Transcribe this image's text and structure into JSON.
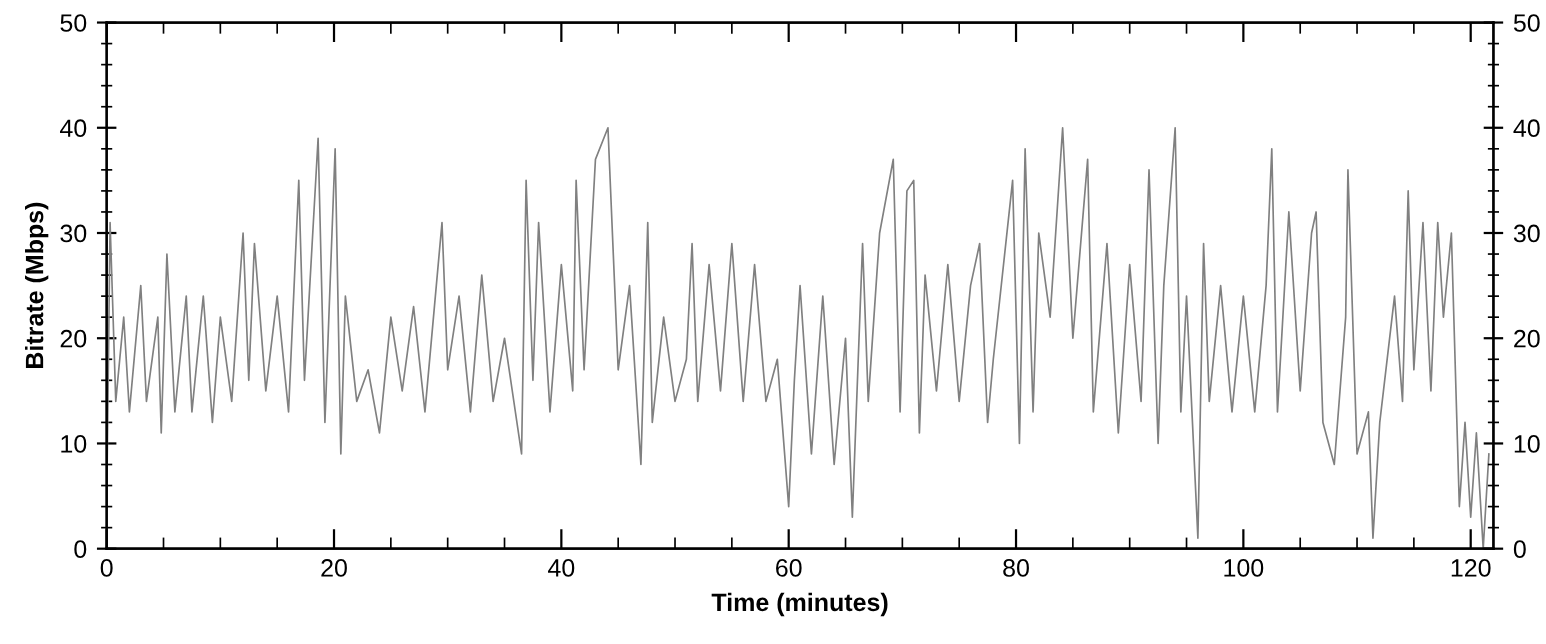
{
  "chart_data": {
    "type": "line",
    "xlabel": "Time (minutes)",
    "ylabel": "Bitrate (Mbps)",
    "xlim": [
      0,
      122
    ],
    "xticks": [
      0,
      20,
      40,
      60,
      80,
      100,
      120
    ],
    "ylim": [
      0,
      50
    ],
    "yticks": [
      0,
      10,
      20,
      30,
      40,
      50
    ],
    "y2lim": [
      0,
      50
    ],
    "y2ticks": [
      0,
      10,
      20,
      30,
      40,
      50
    ],
    "grid": false,
    "legend": false,
    "marker": "none",
    "line_style": "solid",
    "series": [
      {
        "color": "#808080",
        "x": [
          0,
          0.3,
          0.8,
          1.5,
          2,
          3,
          3.5,
          4.5,
          4.8,
          5.3,
          6,
          7,
          7.5,
          8.5,
          9.3,
          10,
          11,
          12,
          12.5,
          13,
          14,
          15,
          16,
          16.9,
          17.4,
          18.6,
          19.2,
          20.1,
          20.6,
          21,
          22,
          23,
          24,
          25,
          26,
          27,
          28,
          29,
          29.5,
          30,
          31,
          32,
          33,
          34,
          35,
          36.5,
          36.9,
          37.5,
          38,
          39,
          40,
          41,
          41.3,
          42,
          43,
          44.1,
          45,
          46,
          47,
          47.6,
          48,
          49,
          50,
          51,
          51.5,
          52,
          53,
          54,
          55,
          56,
          57,
          58,
          59,
          60,
          60.5,
          61,
          62,
          63,
          64,
          65,
          65.6,
          66.5,
          67,
          68,
          69.2,
          69.8,
          70.4,
          71,
          71.5,
          72,
          73,
          74,
          75,
          76,
          76.8,
          77.5,
          78,
          79.7,
          80.3,
          80.8,
          81.5,
          82,
          83,
          84.1,
          85,
          86.3,
          86.8,
          88,
          89,
          90,
          91,
          91.7,
          92.5,
          93,
          94,
          94.5,
          95,
          96,
          96.5,
          97,
          98,
          99,
          100,
          101,
          102,
          102.5,
          103,
          104,
          105,
          106,
          106.4,
          107,
          108,
          109,
          109.2,
          110,
          111,
          111.4,
          112,
          113.3,
          114,
          114.5,
          115,
          115.8,
          116.5,
          117.1,
          117.6,
          118.3,
          119,
          119.5,
          120,
          120.5,
          121.1,
          121.6
        ],
        "values": [
          4,
          31,
          14,
          22,
          13,
          25,
          14,
          22,
          11,
          28,
          13,
          24,
          13,
          24,
          12,
          22,
          14,
          30,
          16,
          29,
          15,
          24,
          13,
          35,
          16,
          39,
          12,
          38,
          9,
          24,
          14,
          17,
          11,
          22,
          15,
          23,
          13,
          25,
          31,
          17,
          24,
          13,
          26,
          14,
          20,
          9,
          35,
          16,
          31,
          13,
          27,
          15,
          35,
          17,
          37,
          40,
          17,
          25,
          8,
          31,
          12,
          22,
          14,
          18,
          29,
          14,
          27,
          15,
          29,
          14,
          27,
          14,
          18,
          4,
          16,
          25,
          9,
          24,
          8,
          20,
          3,
          29,
          14,
          30,
          37,
          13,
          34,
          35,
          11,
          26,
          15,
          27,
          14,
          25,
          29,
          12,
          18,
          35,
          10,
          38,
          13,
          30,
          22,
          40,
          20,
          37,
          13,
          29,
          11,
          27,
          14,
          36,
          10,
          25,
          40,
          13,
          24,
          1,
          29,
          14,
          25,
          13,
          24,
          13,
          25,
          38,
          13,
          32,
          15,
          30,
          32,
          12,
          8,
          22,
          36,
          9,
          13,
          1,
          12,
          24,
          14,
          34,
          17,
          31,
          15,
          31,
          22,
          30,
          4,
          12,
          3,
          11,
          0,
          9
        ]
      }
    ]
  }
}
